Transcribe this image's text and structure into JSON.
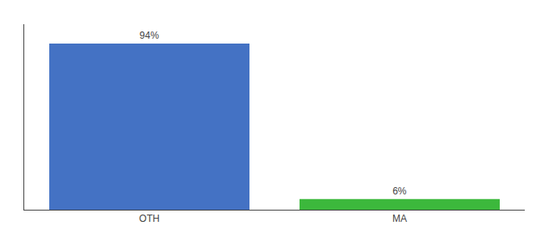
{
  "chart_data": {
    "type": "bar",
    "categories": [
      "OTH",
      "MA"
    ],
    "values": [
      94,
      6
    ],
    "value_labels": [
      "94%",
      "6%"
    ],
    "colors": [
      "#4472c4",
      "#3cb83c"
    ],
    "ylim": [
      0,
      105
    ],
    "grid": false,
    "data_labels": true,
    "tick_labels": "x"
  }
}
